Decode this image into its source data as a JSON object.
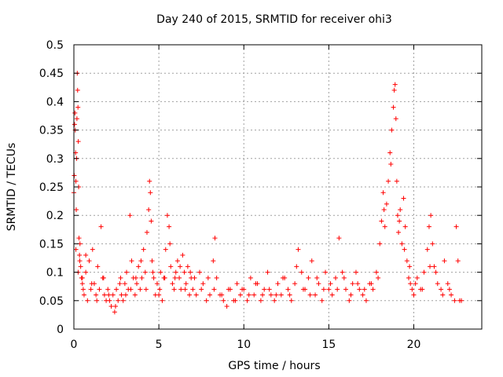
{
  "chart_data": {
    "type": "scatter",
    "title": "Day 240 of 2015, SRMTID for receiver ohi3",
    "xlabel": "GPS time / hours",
    "ylabel": "SRMTID / TECUs",
    "xlim": [
      0,
      24
    ],
    "ylim": [
      0,
      0.5
    ],
    "x_ticks": [
      0,
      5,
      10,
      15,
      20
    ],
    "x_tick_labels": [
      "0",
      "5",
      "10",
      "15",
      "20"
    ],
    "y_ticks": [
      0,
      0.05,
      0.1,
      0.15,
      0.2,
      0.25,
      0.3,
      0.35,
      0.4,
      0.45,
      0.5
    ],
    "y_tick_labels": [
      "0",
      "0.05",
      "0.1",
      "0.15",
      "0.2",
      "0.25",
      "0.3",
      "0.35",
      "0.4",
      "0.45",
      "0.5"
    ],
    "grid": true,
    "marker": "plus",
    "series": [
      {
        "name": "SRMTID",
        "color": "#ff0000",
        "x": [
          0.0,
          0.02,
          0.04,
          0.06,
          0.08,
          0.1,
          0.12,
          0.14,
          0.16,
          0.18,
          0.2,
          0.22,
          0.24,
          0.26,
          0.28,
          0.3,
          0.33,
          0.36,
          0.4,
          0.45,
          0.5,
          0.55,
          0.6,
          0.7,
          0.8,
          0.9,
          1.0,
          1.1,
          1.2,
          1.3,
          1.4,
          1.5,
          1.6,
          1.7,
          1.8,
          1.9,
          2.0,
          2.1,
          2.2,
          2.3,
          2.4,
          2.5,
          2.6,
          2.7,
          2.8,
          2.9,
          3.0,
          3.1,
          3.2,
          3.3,
          3.4,
          3.5,
          3.6,
          3.7,
          3.8,
          3.9,
          4.0,
          4.1,
          4.2,
          4.3,
          4.4,
          4.45,
          4.5,
          4.55,
          4.6,
          4.7,
          4.8,
          4.9,
          5.0,
          5.1,
          5.2,
          5.3,
          5.4,
          5.5,
          5.6,
          5.7,
          5.8,
          5.9,
          6.0,
          6.1,
          6.2,
          6.3,
          6.4,
          6.5,
          6.6,
          6.7,
          6.8,
          6.9,
          7.0,
          7.2,
          7.4,
          7.6,
          7.8,
          8.0,
          8.2,
          8.3,
          8.4,
          8.6,
          8.8,
          9.0,
          9.2,
          9.4,
          9.6,
          9.8,
          10.0,
          10.2,
          10.4,
          10.6,
          10.8,
          11.0,
          11.2,
          11.4,
          11.6,
          11.8,
          12.0,
          12.2,
          12.4,
          12.6,
          12.8,
          13.0,
          13.2,
          13.4,
          13.6,
          13.8,
          14.0,
          14.2,
          14.4,
          14.6,
          14.8,
          15.0,
          15.2,
          15.4,
          15.6,
          15.8,
          16.0,
          16.2,
          16.4,
          16.6,
          16.8,
          17.0,
          17.2,
          17.4,
          17.6,
          17.8,
          18.0,
          18.1,
          18.2,
          18.3,
          18.4,
          18.5,
          18.6,
          18.7,
          18.8,
          18.85,
          18.9,
          18.95,
          19.0,
          19.05,
          19.1,
          19.2,
          19.3,
          19.4,
          19.5,
          19.6,
          19.7,
          19.8,
          19.9,
          20.0,
          20.2,
          20.4,
          20.6,
          20.8,
          20.9,
          21.0,
          21.1,
          21.2,
          21.4,
          21.6,
          21.8,
          22.0,
          22.2,
          22.4,
          22.5,
          22.6,
          22.8,
          0.12,
          0.25,
          0.35,
          0.5,
          0.7,
          1.05,
          1.35,
          1.75,
          2.05,
          2.45,
          2.75,
          3.05,
          3.35,
          3.65,
          3.95,
          4.25,
          4.65,
          5.05,
          5.35,
          5.65,
          5.95,
          6.25,
          6.55,
          6.85,
          7.1,
          7.5,
          7.9,
          8.25,
          8.7,
          9.1,
          9.5,
          9.9,
          10.3,
          10.7,
          11.1,
          11.5,
          11.9,
          12.3,
          12.7,
          13.1,
          13.5,
          13.9,
          14.3,
          14.7,
          15.1,
          15.5,
          15.9,
          16.3,
          16.7,
          17.1,
          17.5,
          17.9,
          18.25,
          18.65,
          19.15,
          19.45,
          19.75,
          20.1,
          20.5,
          20.95,
          21.3,
          21.7,
          22.1,
          22.7
        ],
        "y": [
          0.24,
          0.27,
          0.36,
          0.38,
          0.35,
          0.31,
          0.26,
          0.21,
          0.3,
          0.37,
          0.45,
          0.42,
          0.39,
          0.33,
          0.25,
          0.16,
          0.13,
          0.15,
          0.11,
          0.09,
          0.08,
          0.07,
          0.06,
          0.1,
          0.05,
          0.12,
          0.07,
          0.14,
          0.08,
          0.06,
          0.11,
          0.07,
          0.18,
          0.09,
          0.06,
          0.05,
          0.07,
          0.05,
          0.04,
          0.06,
          0.03,
          0.07,
          0.05,
          0.08,
          0.06,
          0.05,
          0.08,
          0.1,
          0.07,
          0.2,
          0.12,
          0.09,
          0.06,
          0.08,
          0.11,
          0.07,
          0.09,
          0.14,
          0.1,
          0.17,
          0.21,
          0.26,
          0.24,
          0.19,
          0.12,
          0.09,
          0.06,
          0.08,
          0.06,
          0.1,
          0.05,
          0.09,
          0.14,
          0.2,
          0.18,
          0.11,
          0.08,
          0.07,
          0.1,
          0.12,
          0.09,
          0.07,
          0.13,
          0.1,
          0.08,
          0.11,
          0.06,
          0.09,
          0.07,
          0.06,
          0.1,
          0.08,
          0.05,
          0.06,
          0.12,
          0.16,
          0.09,
          0.06,
          0.05,
          0.04,
          0.07,
          0.05,
          0.08,
          0.06,
          0.07,
          0.05,
          0.09,
          0.06,
          0.08,
          0.05,
          0.07,
          0.1,
          0.06,
          0.05,
          0.08,
          0.06,
          0.09,
          0.07,
          0.05,
          0.08,
          0.14,
          0.1,
          0.07,
          0.09,
          0.12,
          0.06,
          0.08,
          0.05,
          0.1,
          0.07,
          0.06,
          0.09,
          0.16,
          0.1,
          0.07,
          0.05,
          0.08,
          0.1,
          0.07,
          0.06,
          0.05,
          0.08,
          0.07,
          0.1,
          0.15,
          0.19,
          0.24,
          0.18,
          0.22,
          0.26,
          0.31,
          0.35,
          0.39,
          0.42,
          0.43,
          0.37,
          0.26,
          0.2,
          0.17,
          0.21,
          0.15,
          0.23,
          0.18,
          0.12,
          0.09,
          0.08,
          0.07,
          0.06,
          0.09,
          0.07,
          0.1,
          0.14,
          0.18,
          0.2,
          0.15,
          0.11,
          0.08,
          0.07,
          0.12,
          0.08,
          0.06,
          0.05,
          0.18,
          0.12,
          0.05,
          0.14,
          0.1,
          0.12,
          0.09,
          0.13,
          0.08,
          0.05,
          0.09,
          0.06,
          0.04,
          0.09,
          0.06,
          0.07,
          0.09,
          0.12,
          0.07,
          0.1,
          0.07,
          0.09,
          0.15,
          0.09,
          0.11,
          0.07,
          0.1,
          0.09,
          0.07,
          0.09,
          0.07,
          0.06,
          0.07,
          0.05,
          0.07,
          0.06,
          0.08,
          0.06,
          0.07,
          0.06,
          0.09,
          0.06,
          0.11,
          0.07,
          0.06,
          0.09,
          0.07,
          0.08,
          0.07,
          0.09,
          0.06,
          0.08,
          0.07,
          0.08,
          0.09,
          0.21,
          0.29,
          0.19,
          0.14,
          0.11,
          0.08,
          0.07,
          0.11,
          0.1,
          0.06,
          0.07,
          0.05
        ]
      }
    ]
  }
}
